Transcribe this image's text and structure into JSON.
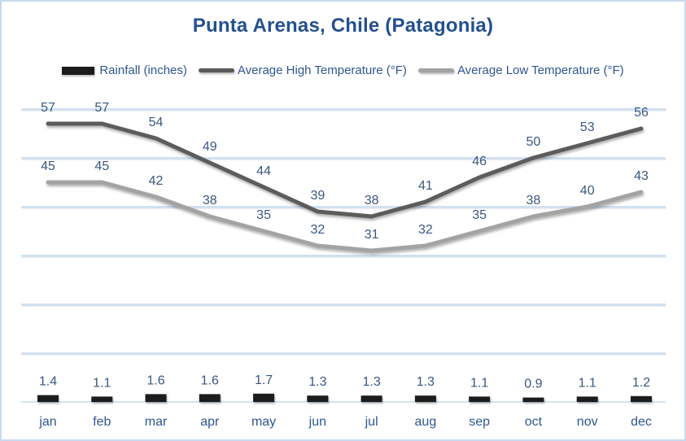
{
  "chart_data": {
    "type": "combo",
    "title": "Punta Arenas, Chile (Patagonia)",
    "xlabel": "",
    "ylabel": "",
    "categories": [
      "jan",
      "feb",
      "mar",
      "apr",
      "may",
      "jun",
      "jul",
      "aug",
      "sep",
      "oct",
      "nov",
      "dec"
    ],
    "series": [
      {
        "name": "Rainfall (inches)",
        "type": "bar",
        "color": "#1b1b1b",
        "values": [
          1.4,
          1.1,
          1.6,
          1.6,
          1.7,
          1.3,
          1.3,
          1.3,
          1.1,
          0.9,
          1.1,
          1.2
        ]
      },
      {
        "name": "Average High Temperature (°F)",
        "type": "line",
        "color": "#5b5b5b",
        "values": [
          57,
          57,
          54,
          49,
          44,
          39,
          38,
          41,
          46,
          50,
          53,
          56
        ]
      },
      {
        "name": "Average Low Temperature (°F)",
        "type": "line",
        "color": "#a3a3a3",
        "values": [
          45,
          45,
          42,
          38,
          35,
          32,
          31,
          32,
          35,
          38,
          40,
          43
        ]
      }
    ],
    "ylim": [
      0,
      60
    ],
    "gridline_values": [
      10,
      20,
      30,
      40,
      50,
      60
    ],
    "grid": true,
    "data_labels": true,
    "legend_position": "top",
    "colors": {
      "title_text": "#24508F",
      "legend_text": "#2F5690",
      "data_label_text": "#3B5780",
      "month_label_text": "#2F5690",
      "gridline": "#c7d9ed",
      "axis_line": "#c7d9ed",
      "background": "#ffffff",
      "border": "#c9daee"
    }
  }
}
